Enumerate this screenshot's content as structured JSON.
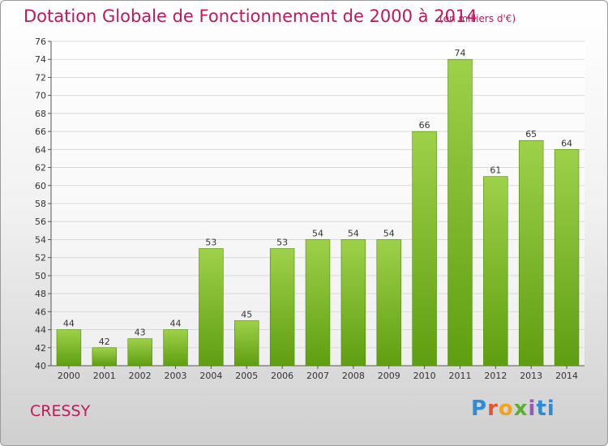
{
  "title": "Dotation Globale de Fonctionnement de 2000 à 2014",
  "unit_note": "(en milliers d'€)",
  "place_name": "CRESSY",
  "logo_text": "Proxiti",
  "colors": {
    "title": "#c2185b",
    "bar_light": "#9ed14a",
    "bar_dark": "#5f9e10",
    "grid": "#d9d9d9"
  },
  "chart_data": {
    "type": "bar",
    "categories": [
      "2000",
      "2001",
      "2002",
      "2003",
      "2004",
      "2005",
      "2006",
      "2007",
      "2008",
      "2009",
      "2010",
      "2011",
      "2012",
      "2013",
      "2014"
    ],
    "values": [
      44,
      42,
      43,
      44,
      53,
      45,
      53,
      54,
      54,
      54,
      66,
      74,
      61,
      65,
      64
    ],
    "ylim": [
      40,
      76
    ],
    "yticks": [
      40,
      42,
      44,
      46,
      48,
      50,
      52,
      54,
      56,
      58,
      60,
      62,
      64,
      66,
      68,
      70,
      72,
      74,
      76
    ],
    "grid": true,
    "data_labels": true
  }
}
